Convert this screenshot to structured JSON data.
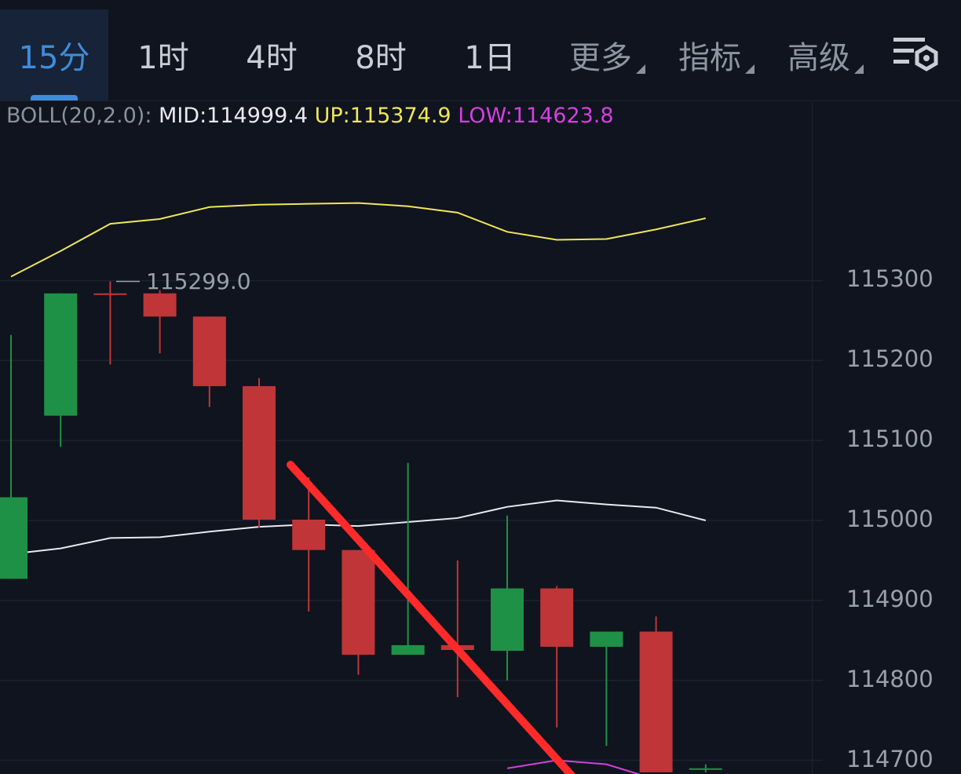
{
  "tabs": [
    {
      "label": "15分",
      "active": true
    },
    {
      "label": "1时"
    },
    {
      "label": "4时"
    },
    {
      "label": "8时"
    },
    {
      "label": "1日"
    },
    {
      "label": "更多",
      "dropdown": true
    },
    {
      "label": "指标",
      "dropdown": true
    },
    {
      "label": "高级",
      "dropdown": true
    }
  ],
  "settings_icon": "chart-settings-icon",
  "indicator": {
    "name": "BOLL(20,2.0):",
    "mid": "MID:114999.4",
    "up": "UP:115374.9",
    "low": "LOW:114623.8"
  },
  "colors": {
    "background": "#0f141e",
    "up_candle": "#1f9146",
    "down_candle": "#c03538",
    "boll_mid": "#e8eaee",
    "boll_up": "#f0e65a",
    "boll_low": "#d63fe0",
    "annotation": "#ff2a2a",
    "active_tab": "#3f8cdc"
  },
  "chart_data": {
    "type": "candlestick",
    "y_axis_ticks": [
      "115300",
      "115200",
      "115100",
      "115000",
      "114900",
      "114800",
      "114700"
    ],
    "ylim": [
      114685,
      115500
    ],
    "high_label": "115299.0",
    "candles": [
      {
        "open": 114927,
        "close": 115029,
        "high": 115232,
        "low": 114927,
        "dir": "up"
      },
      {
        "open": 115131,
        "close": 115284,
        "high": 115284,
        "low": 115092,
        "dir": "up"
      },
      {
        "open": 115284,
        "close": 115282,
        "high": 115299,
        "low": 115195,
        "dir": "down"
      },
      {
        "open": 115284,
        "close": 115255,
        "high": 115288,
        "low": 115209,
        "dir": "down"
      },
      {
        "open": 115255,
        "close": 115168,
        "high": 115255,
        "low": 115142,
        "dir": "down"
      },
      {
        "open": 115168,
        "close": 115001,
        "high": 115178,
        "low": 114991,
        "dir": "down"
      },
      {
        "open": 115001,
        "close": 114963,
        "high": 115054,
        "low": 114886,
        "dir": "down"
      },
      {
        "open": 114963,
        "close": 114832,
        "high": 114963,
        "low": 114807,
        "dir": "down"
      },
      {
        "open": 114832,
        "close": 114844,
        "high": 115072,
        "low": 114832,
        "dir": "up"
      },
      {
        "open": 114844,
        "close": 114838,
        "high": 114950,
        "low": 114779,
        "dir": "down"
      },
      {
        "open": 114837,
        "close": 114915,
        "high": 115006,
        "low": 114800,
        "dir": "up"
      },
      {
        "open": 114915,
        "close": 114842,
        "high": 114918,
        "low": 114741,
        "dir": "down"
      },
      {
        "open": 114842,
        "close": 114861,
        "high": 114861,
        "low": 114718,
        "dir": "up"
      },
      {
        "open": 114861,
        "close": 114685,
        "high": 114880,
        "low": 114685,
        "dir": "down"
      },
      {
        "open": 114690,
        "close": 114690,
        "high": 114695,
        "low": 114685,
        "dir": "up"
      }
    ],
    "boll_up": [
      115305,
      115337,
      115371,
      115377,
      115392,
      115395,
      115396,
      115397,
      115393,
      115385,
      115361,
      115351,
      115352,
      115364,
      115378
    ],
    "boll_mid": [
      114958,
      114965,
      114978,
      114979,
      114986,
      114992,
      114995,
      114993,
      114998,
      115003,
      115017,
      115025,
      115020,
      115016,
      115000
    ],
    "boll_low": [
      114690,
      114700,
      114695,
      114676
    ]
  }
}
